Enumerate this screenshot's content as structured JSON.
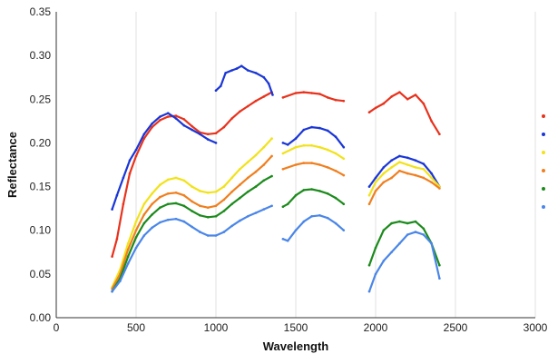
{
  "chart_data": {
    "type": "line",
    "title": "",
    "xlabel": "Wavelength",
    "ylabel": "Reflectance",
    "xlim": [
      0,
      3000
    ],
    "ylim": [
      0,
      0.35
    ],
    "x_ticks": [
      "0",
      "500",
      "1000",
      "1500",
      "2000",
      "2500",
      "3000"
    ],
    "y_ticks": [
      "0.00",
      "0.05",
      "0.10",
      "0.15",
      "0.20",
      "0.25",
      "0.30",
      "0.35"
    ],
    "grid": "vertical",
    "legend": "right (markers only, labels cut off)",
    "series": [
      {
        "color": "#e8321c",
        "segments": [
          [
            [
              350,
              0.07
            ],
            [
              380,
              0.09
            ],
            [
              420,
              0.13
            ],
            [
              460,
              0.165
            ],
            [
              500,
              0.185
            ],
            [
              550,
              0.205
            ],
            [
              600,
              0.218
            ],
            [
              650,
              0.226
            ],
            [
              700,
              0.23
            ],
            [
              750,
              0.231
            ],
            [
              800,
              0.227
            ],
            [
              850,
              0.219
            ],
            [
              900,
              0.212
            ],
            [
              950,
              0.21
            ],
            [
              1000,
              0.211
            ],
            [
              1050,
              0.218
            ],
            [
              1100,
              0.228
            ],
            [
              1150,
              0.236
            ],
            [
              1200,
              0.242
            ],
            [
              1250,
              0.248
            ],
            [
              1300,
              0.253
            ],
            [
              1350,
              0.258
            ]
          ],
          [
            [
              1420,
              0.252
            ],
            [
              1500,
              0.257
            ],
            [
              1550,
              0.258
            ],
            [
              1600,
              0.257
            ],
            [
              1650,
              0.256
            ],
            [
              1700,
              0.252
            ],
            [
              1750,
              0.249
            ],
            [
              1800,
              0.248
            ]
          ],
          [
            [
              1960,
              0.235
            ],
            [
              2000,
              0.24
            ],
            [
              2050,
              0.245
            ],
            [
              2100,
              0.253
            ],
            [
              2150,
              0.258
            ],
            [
              2200,
              0.25
            ],
            [
              2250,
              0.255
            ],
            [
              2300,
              0.245
            ],
            [
              2350,
              0.225
            ],
            [
              2400,
              0.21
            ]
          ]
        ]
      },
      {
        "color": "#1a36d6",
        "segments": [
          [
            [
              350,
              0.124
            ],
            [
              380,
              0.14
            ],
            [
              420,
              0.16
            ],
            [
              460,
              0.18
            ],
            [
              500,
              0.192
            ],
            [
              550,
              0.21
            ],
            [
              600,
              0.222
            ],
            [
              650,
              0.23
            ],
            [
              700,
              0.234
            ],
            [
              750,
              0.228
            ],
            [
              800,
              0.22
            ],
            [
              850,
              0.215
            ],
            [
              900,
              0.21
            ],
            [
              950,
              0.204
            ],
            [
              1000,
              0.2
            ]
          ],
          [
            [
              1000,
              0.26
            ],
            [
              1030,
              0.265
            ],
            [
              1060,
              0.28
            ],
            [
              1100,
              0.283
            ],
            [
              1130,
              0.285
            ],
            [
              1160,
              0.288
            ],
            [
              1200,
              0.283
            ],
            [
              1250,
              0.28
            ],
            [
              1300,
              0.275
            ],
            [
              1330,
              0.268
            ],
            [
              1355,
              0.255
            ]
          ],
          [
            [
              1420,
              0.2
            ],
            [
              1450,
              0.198
            ],
            [
              1500,
              0.205
            ],
            [
              1550,
              0.215
            ],
            [
              1600,
              0.218
            ],
            [
              1650,
              0.217
            ],
            [
              1700,
              0.214
            ],
            [
              1750,
              0.207
            ],
            [
              1800,
              0.195
            ]
          ],
          [
            [
              1960,
              0.15
            ],
            [
              2000,
              0.16
            ],
            [
              2050,
              0.172
            ],
            [
              2100,
              0.18
            ],
            [
              2150,
              0.185
            ],
            [
              2200,
              0.183
            ],
            [
              2250,
              0.18
            ],
            [
              2300,
              0.176
            ],
            [
              2350,
              0.165
            ],
            [
              2400,
              0.15
            ]
          ]
        ]
      },
      {
        "color": "#f2e21a",
        "segments": [
          [
            [
              350,
              0.035
            ],
            [
              400,
              0.055
            ],
            [
              450,
              0.085
            ],
            [
              500,
              0.11
            ],
            [
              550,
              0.13
            ],
            [
              600,
              0.142
            ],
            [
              650,
              0.152
            ],
            [
              700,
              0.158
            ],
            [
              750,
              0.16
            ],
            [
              800,
              0.157
            ],
            [
              850,
              0.15
            ],
            [
              900,
              0.145
            ],
            [
              950,
              0.143
            ],
            [
              1000,
              0.144
            ],
            [
              1050,
              0.15
            ],
            [
              1100,
              0.16
            ],
            [
              1150,
              0.17
            ],
            [
              1200,
              0.178
            ],
            [
              1250,
              0.186
            ],
            [
              1300,
              0.195
            ],
            [
              1350,
              0.205
            ]
          ],
          [
            [
              1420,
              0.188
            ],
            [
              1500,
              0.195
            ],
            [
              1550,
              0.197
            ],
            [
              1600,
              0.197
            ],
            [
              1650,
              0.195
            ],
            [
              1700,
              0.192
            ],
            [
              1750,
              0.188
            ],
            [
              1800,
              0.182
            ]
          ],
          [
            [
              1960,
              0.14
            ],
            [
              2000,
              0.155
            ],
            [
              2050,
              0.165
            ],
            [
              2100,
              0.172
            ],
            [
              2150,
              0.178
            ],
            [
              2200,
              0.175
            ],
            [
              2250,
              0.172
            ],
            [
              2300,
              0.17
            ],
            [
              2350,
              0.16
            ],
            [
              2400,
              0.15
            ]
          ]
        ]
      },
      {
        "color": "#f07f1e",
        "segments": [
          [
            [
              350,
              0.033
            ],
            [
              400,
              0.05
            ],
            [
              450,
              0.078
            ],
            [
              500,
              0.1
            ],
            [
              550,
              0.118
            ],
            [
              600,
              0.13
            ],
            [
              650,
              0.138
            ],
            [
              700,
              0.142
            ],
            [
              750,
              0.143
            ],
            [
              800,
              0.14
            ],
            [
              850,
              0.133
            ],
            [
              900,
              0.128
            ],
            [
              950,
              0.126
            ],
            [
              1000,
              0.128
            ],
            [
              1050,
              0.135
            ],
            [
              1100,
              0.144
            ],
            [
              1150,
              0.152
            ],
            [
              1200,
              0.16
            ],
            [
              1250,
              0.167
            ],
            [
              1300,
              0.175
            ],
            [
              1350,
              0.185
            ]
          ],
          [
            [
              1420,
              0.17
            ],
            [
              1500,
              0.175
            ],
            [
              1550,
              0.177
            ],
            [
              1600,
              0.177
            ],
            [
              1650,
              0.175
            ],
            [
              1700,
              0.172
            ],
            [
              1750,
              0.168
            ],
            [
              1800,
              0.163
            ]
          ],
          [
            [
              1960,
              0.13
            ],
            [
              2000,
              0.145
            ],
            [
              2050,
              0.155
            ],
            [
              2100,
              0.16
            ],
            [
              2150,
              0.168
            ],
            [
              2200,
              0.165
            ],
            [
              2250,
              0.163
            ],
            [
              2300,
              0.16
            ],
            [
              2350,
              0.155
            ],
            [
              2400,
              0.148
            ]
          ]
        ]
      },
      {
        "color": "#1c8a1c",
        "segments": [
          [
            [
              350,
              0.03
            ],
            [
              400,
              0.045
            ],
            [
              450,
              0.07
            ],
            [
              500,
              0.092
            ],
            [
              550,
              0.108
            ],
            [
              600,
              0.118
            ],
            [
              650,
              0.126
            ],
            [
              700,
              0.13
            ],
            [
              750,
              0.131
            ],
            [
              800,
              0.128
            ],
            [
              850,
              0.122
            ],
            [
              900,
              0.117
            ],
            [
              950,
              0.115
            ],
            [
              1000,
              0.116
            ],
            [
              1050,
              0.122
            ],
            [
              1100,
              0.13
            ],
            [
              1150,
              0.137
            ],
            [
              1200,
              0.144
            ],
            [
              1250,
              0.15
            ],
            [
              1300,
              0.157
            ],
            [
              1350,
              0.162
            ]
          ],
          [
            [
              1420,
              0.127
            ],
            [
              1450,
              0.13
            ],
            [
              1500,
              0.14
            ],
            [
              1550,
              0.146
            ],
            [
              1600,
              0.147
            ],
            [
              1650,
              0.145
            ],
            [
              1700,
              0.142
            ],
            [
              1750,
              0.137
            ],
            [
              1800,
              0.13
            ]
          ],
          [
            [
              1960,
              0.06
            ],
            [
              2000,
              0.08
            ],
            [
              2050,
              0.1
            ],
            [
              2100,
              0.108
            ],
            [
              2150,
              0.11
            ],
            [
              2200,
              0.108
            ],
            [
              2250,
              0.11
            ],
            [
              2300,
              0.102
            ],
            [
              2350,
              0.085
            ],
            [
              2400,
              0.06
            ]
          ]
        ]
      },
      {
        "color": "#4a86e8",
        "segments": [
          [
            [
              350,
              0.03
            ],
            [
              400,
              0.042
            ],
            [
              450,
              0.062
            ],
            [
              500,
              0.08
            ],
            [
              550,
              0.094
            ],
            [
              600,
              0.103
            ],
            [
              650,
              0.109
            ],
            [
              700,
              0.112
            ],
            [
              750,
              0.113
            ],
            [
              800,
              0.11
            ],
            [
              850,
              0.104
            ],
            [
              900,
              0.098
            ],
            [
              950,
              0.094
            ],
            [
              1000,
              0.094
            ],
            [
              1050,
              0.098
            ],
            [
              1100,
              0.105
            ],
            [
              1150,
              0.111
            ],
            [
              1200,
              0.116
            ],
            [
              1250,
              0.12
            ],
            [
              1300,
              0.124
            ],
            [
              1350,
              0.128
            ]
          ],
          [
            [
              1420,
              0.09
            ],
            [
              1450,
              0.088
            ],
            [
              1500,
              0.1
            ],
            [
              1550,
              0.11
            ],
            [
              1600,
              0.116
            ],
            [
              1650,
              0.117
            ],
            [
              1700,
              0.114
            ],
            [
              1750,
              0.108
            ],
            [
              1800,
              0.1
            ]
          ],
          [
            [
              1960,
              0.03
            ],
            [
              2000,
              0.05
            ],
            [
              2050,
              0.065
            ],
            [
              2100,
              0.075
            ],
            [
              2150,
              0.085
            ],
            [
              2200,
              0.095
            ],
            [
              2250,
              0.098
            ],
            [
              2300,
              0.095
            ],
            [
              2350,
              0.085
            ],
            [
              2400,
              0.045
            ]
          ]
        ]
      }
    ]
  }
}
